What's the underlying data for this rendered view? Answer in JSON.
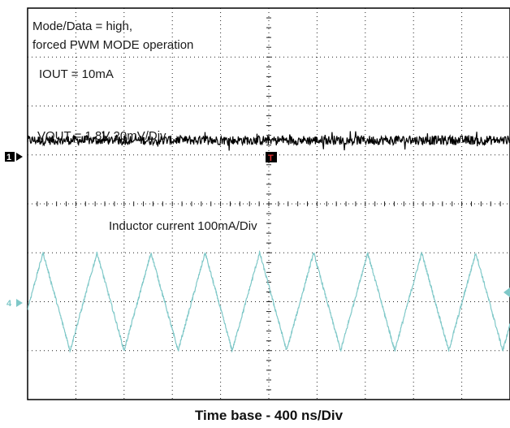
{
  "chart_data": {
    "type": "line",
    "annotations": {
      "mode_line1": "Mode/Data = high,",
      "mode_line2": "forced PWM MODE operation",
      "iout": "IOUT = 10mA",
      "vout": "VOUT = 1.8V 20mV/Div",
      "inductor": "Inductor current 100mA/Div"
    },
    "xlabel": "Time base - 400 ns/Div",
    "grid": true,
    "grid_divisions": {
      "x": 10,
      "y": 8
    },
    "x_range_div": [
      0,
      10
    ],
    "y_range_div": [
      0,
      8
    ],
    "channel_markers": [
      {
        "name": "1",
        "color": "#000000"
      },
      {
        "name": "4",
        "color": "#7fc8c8"
      }
    ],
    "trigger_marker": "T",
    "series": [
      {
        "name": "VOUT",
        "color": "#000000",
        "shape": "noise",
        "level_div": 5.3,
        "noise_amplitude_div": 0.12
      },
      {
        "name": "Inductor current",
        "color": "#7fc8c8",
        "shape": "triangle",
        "peak_times_div": [
          0.32,
          1.44,
          2.56,
          3.68,
          4.81,
          5.93,
          7.05,
          8.17,
          9.29
        ],
        "trough_times_div": [
          0.88,
          2.0,
          3.12,
          4.24,
          5.37,
          6.49,
          7.61,
          8.73,
          9.85
        ],
        "peak_level_div": 3.0,
        "trough_level_div": 1.0
      }
    ]
  }
}
